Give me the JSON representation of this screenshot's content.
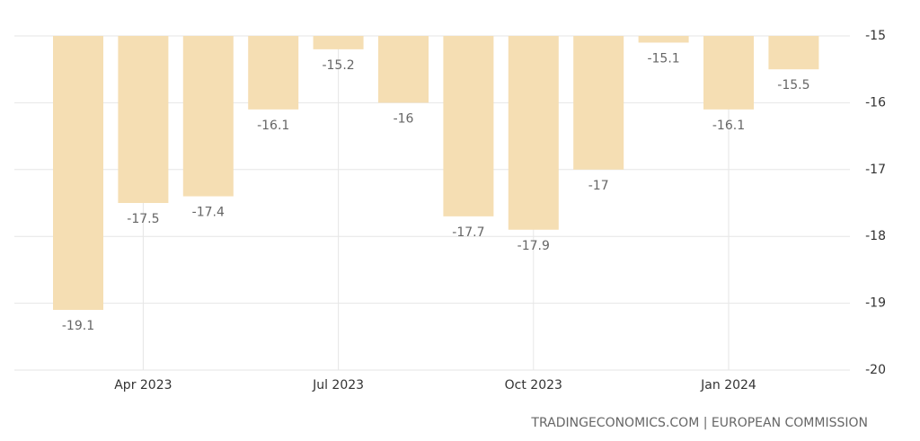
{
  "chart_data": {
    "type": "bar",
    "categories": [
      null,
      "Apr 2023",
      null,
      null,
      "Jul 2023",
      null,
      null,
      "Oct 2023",
      null,
      null,
      "Jan 2024",
      null
    ],
    "values": [
      -19.1,
      -17.5,
      -17.4,
      -16.1,
      -15.2,
      -16,
      -17.7,
      -17.9,
      -17,
      -15.1,
      -16.1,
      -15.5
    ],
    "color": "#f5deb3",
    "ylim": [
      -20,
      -15
    ],
    "yticks": [
      -20,
      -19,
      -18,
      -17,
      -16,
      -15
    ],
    "grid": true,
    "source": "TRADINGECONOMICS.COM | EUROPEAN COMMISSION"
  }
}
